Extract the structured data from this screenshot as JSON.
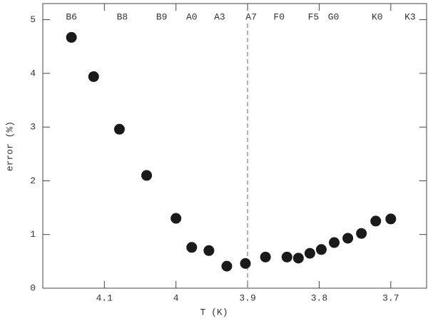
{
  "chart_data": {
    "type": "scatter",
    "x_label": "T (K)",
    "y_label": "error (%)",
    "x": [
      4.146,
      4.115,
      4.079,
      4.041,
      4.0,
      3.978,
      3.954,
      3.929,
      3.903,
      3.875,
      3.845,
      3.829,
      3.813,
      3.797,
      3.779,
      3.76,
      3.741,
      3.721,
      3.7
    ],
    "values": [
      4.67,
      3.94,
      2.96,
      2.1,
      1.3,
      0.76,
      0.7,
      0.41,
      0.46,
      0.58,
      0.58,
      0.56,
      0.65,
      0.72,
      0.85,
      0.93,
      1.02,
      1.25,
      1.29
    ],
    "color": "#1a1a1a",
    "xlim": [
      4.186,
      3.65
    ],
    "xticks": [
      4.1,
      4,
      3.9,
      3.8,
      3.7
    ],
    "ylim": [
      0,
      5.3
    ],
    "yticks": [
      0,
      1,
      2,
      3,
      4,
      5
    ],
    "vline": 3.9,
    "vline_color": "#999999",
    "spectral_types": [
      {
        "label": "B6",
        "x": 4.146
      },
      {
        "label": "B8",
        "x": 4.075
      },
      {
        "label": "B9",
        "x": 4.02
      },
      {
        "label": "A0",
        "x": 3.978
      },
      {
        "label": "A3",
        "x": 3.939
      },
      {
        "label": "A7",
        "x": 3.895
      },
      {
        "label": "F0",
        "x": 3.856
      },
      {
        "label": "F5",
        "x": 3.808
      },
      {
        "label": "G0",
        "x": 3.78
      },
      {
        "label": "K0",
        "x": 3.719
      },
      {
        "label": "K3",
        "x": 3.673
      }
    ]
  }
}
